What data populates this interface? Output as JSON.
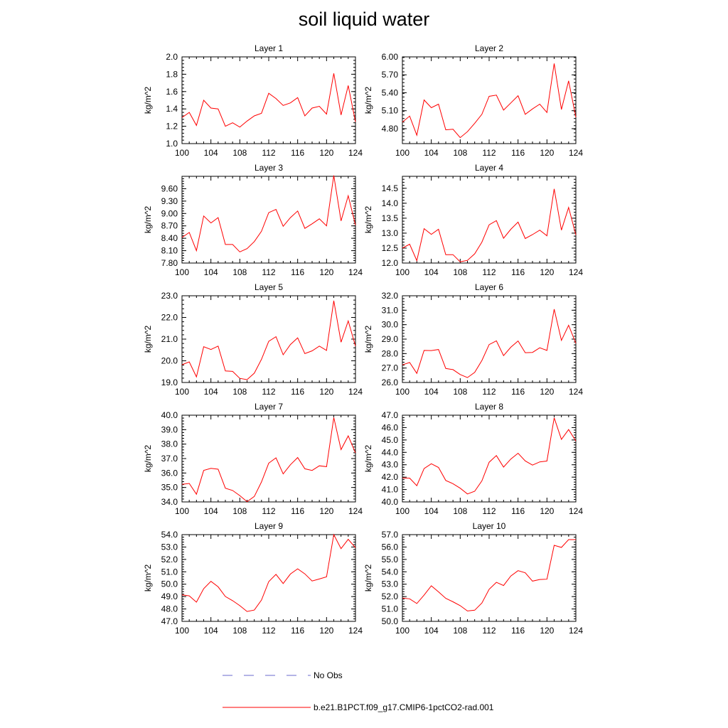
{
  "title": "soil liquid water",
  "colors": {
    "model_line": "#ff0000",
    "obs_line": "#6a6acd",
    "axis": "#000000"
  },
  "legend": [
    {
      "label": "No Obs",
      "style": "dashed",
      "color": "#6a6acd"
    },
    {
      "label": "b.e21.B1PCT.f09_g17.CMIP6-1pctCO2-rad.001",
      "style": "solid",
      "color": "#ff0000"
    }
  ],
  "chart_data": [
    {
      "type": "line",
      "title": "Layer 1",
      "ylabel": "kg/m^2",
      "xlim": [
        100,
        124
      ],
      "xticks": [
        100,
        104,
        108,
        112,
        116,
        120,
        124
      ],
      "ylim": [
        1.0,
        2.0
      ],
      "yticks": [
        "1.0",
        "1.2",
        "1.4",
        "1.6",
        "1.8",
        "2.0"
      ],
      "x": [
        100,
        101,
        102,
        103,
        104,
        105,
        106,
        107,
        108,
        109,
        110,
        111,
        112,
        113,
        114,
        115,
        116,
        117,
        118,
        119,
        120,
        121,
        122,
        123,
        124
      ],
      "series": [
        {
          "values": [
            1.3,
            1.36,
            1.21,
            1.5,
            1.41,
            1.4,
            1.2,
            1.24,
            1.19,
            1.26,
            1.32,
            1.35,
            1.58,
            1.52,
            1.44,
            1.47,
            1.53,
            1.32,
            1.41,
            1.43,
            1.34,
            1.81,
            1.33,
            1.67,
            1.25
          ]
        }
      ]
    },
    {
      "type": "line",
      "title": "Layer 2",
      "ylabel": "kg/m^2",
      "xlim": [
        100,
        124
      ],
      "xticks": [
        100,
        104,
        108,
        112,
        116,
        120,
        124
      ],
      "ylim": [
        4.55,
        6.0
      ],
      "yticks": [
        "4.80",
        "5.10",
        "5.40",
        "5.70",
        "6.00"
      ],
      "x": [
        100,
        101,
        102,
        103,
        104,
        105,
        106,
        107,
        108,
        109,
        110,
        111,
        112,
        113,
        114,
        115,
        116,
        117,
        118,
        119,
        120,
        121,
        122,
        123,
        124
      ],
      "series": [
        {
          "values": [
            4.91,
            5.01,
            4.69,
            5.28,
            5.15,
            5.21,
            4.78,
            4.79,
            4.65,
            4.75,
            4.89,
            5.04,
            5.34,
            5.36,
            5.11,
            5.23,
            5.35,
            5.04,
            5.13,
            5.21,
            5.07,
            5.89,
            5.12,
            5.6,
            4.99
          ]
        }
      ]
    },
    {
      "type": "line",
      "title": "Layer 3",
      "ylabel": "kg/m^2",
      "xlim": [
        100,
        124
      ],
      "xticks": [
        100,
        104,
        108,
        112,
        116,
        120,
        124
      ],
      "ylim": [
        7.8,
        9.9
      ],
      "yticks": [
        "7.80",
        "8.10",
        "8.40",
        "8.70",
        "9.00",
        "9.30",
        "9.60"
      ],
      "x": [
        100,
        101,
        102,
        103,
        104,
        105,
        106,
        107,
        108,
        109,
        110,
        111,
        112,
        113,
        114,
        115,
        116,
        117,
        118,
        119,
        120,
        121,
        122,
        123,
        124
      ],
      "series": [
        {
          "values": [
            8.42,
            8.54,
            8.1,
            8.94,
            8.77,
            8.9,
            8.25,
            8.25,
            8.07,
            8.15,
            8.32,
            8.57,
            9.02,
            9.1,
            8.69,
            8.9,
            9.06,
            8.64,
            8.75,
            8.87,
            8.7,
            9.92,
            8.82,
            9.43,
            8.72
          ]
        }
      ]
    },
    {
      "type": "line",
      "title": "Layer 4",
      "ylabel": "kg/m^2",
      "xlim": [
        100,
        124
      ],
      "xticks": [
        100,
        104,
        108,
        112,
        116,
        120,
        124
      ],
      "ylim": [
        12.0,
        14.9
      ],
      "yticks": [
        "12.0",
        "12.5",
        "13.0",
        "13.5",
        "14.0",
        "14.5"
      ],
      "x": [
        100,
        101,
        102,
        103,
        104,
        105,
        106,
        107,
        108,
        109,
        110,
        111,
        112,
        113,
        114,
        115,
        116,
        117,
        118,
        119,
        120,
        121,
        122,
        123,
        124
      ],
      "series": [
        {
          "values": [
            12.5,
            12.63,
            12.08,
            13.15,
            12.96,
            13.13,
            12.28,
            12.28,
            12.04,
            12.09,
            12.31,
            12.7,
            13.28,
            13.42,
            12.83,
            13.13,
            13.37,
            12.82,
            12.95,
            13.1,
            12.91,
            14.48,
            13.1,
            13.86,
            12.94
          ]
        }
      ]
    },
    {
      "type": "line",
      "title": "Layer 5",
      "ylabel": "kg/m^2",
      "xlim": [
        100,
        124
      ],
      "xticks": [
        100,
        104,
        108,
        112,
        116,
        120,
        124
      ],
      "ylim": [
        19.0,
        23.0
      ],
      "yticks": [
        "19.0",
        "20.0",
        "21.0",
        "22.0",
        "23.0"
      ],
      "x": [
        100,
        101,
        102,
        103,
        104,
        105,
        106,
        107,
        108,
        109,
        110,
        111,
        112,
        113,
        114,
        115,
        116,
        117,
        118,
        119,
        120,
        121,
        122,
        123,
        124
      ],
      "series": [
        {
          "values": [
            19.82,
            19.95,
            19.26,
            20.65,
            20.52,
            20.68,
            19.53,
            19.51,
            19.19,
            19.13,
            19.43,
            20.07,
            20.9,
            21.11,
            20.28,
            20.75,
            21.06,
            20.33,
            20.46,
            20.68,
            20.48,
            22.77,
            20.86,
            21.84,
            20.68
          ]
        }
      ]
    },
    {
      "type": "line",
      "title": "Layer 6",
      "ylabel": "kg/m^2",
      "xlim": [
        100,
        124
      ],
      "xticks": [
        100,
        104,
        108,
        112,
        116,
        120,
        124
      ],
      "ylim": [
        26.0,
        32.0
      ],
      "yticks": [
        "26.0",
        "27.0",
        "28.0",
        "29.0",
        "30.0",
        "31.0",
        "32.0"
      ],
      "x": [
        100,
        101,
        102,
        103,
        104,
        105,
        106,
        107,
        108,
        109,
        110,
        111,
        112,
        113,
        114,
        115,
        116,
        117,
        118,
        119,
        120,
        121,
        122,
        123,
        124
      ],
      "series": [
        {
          "values": [
            27.22,
            27.38,
            26.63,
            28.22,
            28.21,
            28.28,
            26.97,
            26.89,
            26.55,
            26.34,
            26.7,
            27.52,
            28.62,
            28.88,
            27.86,
            28.44,
            28.87,
            28.06,
            28.08,
            28.4,
            28.22,
            31.07,
            28.91,
            29.96,
            28.71
          ]
        }
      ]
    },
    {
      "type": "line",
      "title": "Layer 7",
      "ylabel": "kg/m^2",
      "xlim": [
        100,
        124
      ],
      "xticks": [
        100,
        104,
        108,
        112,
        116,
        120,
        124
      ],
      "ylim": [
        34.0,
        40.0
      ],
      "yticks": [
        "34.0",
        "35.0",
        "36.0",
        "37.0",
        "38.0",
        "39.0",
        "40.0"
      ],
      "x": [
        100,
        101,
        102,
        103,
        104,
        105,
        106,
        107,
        108,
        109,
        110,
        111,
        112,
        113,
        114,
        115,
        116,
        117,
        118,
        119,
        120,
        121,
        122,
        123,
        124
      ],
      "series": [
        {
          "values": [
            35.22,
            35.28,
            34.53,
            36.18,
            36.32,
            36.26,
            34.95,
            34.79,
            34.44,
            34.02,
            34.38,
            35.38,
            36.68,
            37.05,
            35.94,
            36.57,
            37.07,
            36.29,
            36.18,
            36.5,
            36.44,
            39.84,
            37.62,
            38.57,
            37.39
          ]
        }
      ]
    },
    {
      "type": "line",
      "title": "Layer 8",
      "ylabel": "kg/m^2",
      "xlim": [
        100,
        124
      ],
      "xticks": [
        100,
        104,
        108,
        112,
        116,
        120,
        124
      ],
      "ylim": [
        40.0,
        47.0
      ],
      "yticks": [
        "40.0",
        "41.0",
        "42.0",
        "43.0",
        "44.0",
        "45.0",
        "46.0",
        "47.0"
      ],
      "x": [
        100,
        101,
        102,
        103,
        104,
        105,
        106,
        107,
        108,
        109,
        110,
        111,
        112,
        113,
        114,
        115,
        116,
        117,
        118,
        119,
        120,
        121,
        122,
        123,
        124
      ],
      "series": [
        {
          "values": [
            41.93,
            41.92,
            41.31,
            42.69,
            43.08,
            42.78,
            41.73,
            41.47,
            41.11,
            40.64,
            40.86,
            41.7,
            43.2,
            43.74,
            42.81,
            43.46,
            43.93,
            43.31,
            42.97,
            43.23,
            43.3,
            46.79,
            45.05,
            45.84,
            44.91
          ]
        }
      ]
    },
    {
      "type": "line",
      "title": "Layer 9",
      "ylabel": "kg/m^2",
      "xlim": [
        100,
        124
      ],
      "xticks": [
        100,
        104,
        108,
        112,
        116,
        120,
        124
      ],
      "ylim": [
        47.0,
        54.0
      ],
      "yticks": [
        "47.0",
        "48.0",
        "49.0",
        "50.0",
        "51.0",
        "52.0",
        "53.0",
        "54.0"
      ],
      "x": [
        100,
        101,
        102,
        103,
        104,
        105,
        106,
        107,
        108,
        109,
        110,
        111,
        112,
        113,
        114,
        115,
        116,
        117,
        118,
        119,
        120,
        121,
        122,
        123,
        124
      ],
      "series": [
        {
          "values": [
            49.14,
            49.06,
            48.55,
            49.64,
            50.23,
            49.79,
            49.01,
            48.67,
            48.27,
            47.8,
            47.91,
            48.72,
            50.21,
            50.79,
            50.05,
            50.82,
            51.24,
            50.83,
            50.26,
            50.42,
            50.59,
            54.0,
            52.87,
            53.62,
            52.94
          ]
        }
      ]
    },
    {
      "type": "line",
      "title": "Layer 10",
      "ylabel": "kg/m^2",
      "xlim": [
        100,
        124
      ],
      "xticks": [
        100,
        104,
        108,
        112,
        116,
        120,
        124
      ],
      "ylim": [
        50.0,
        57.0
      ],
      "yticks": [
        "50.0",
        "51.0",
        "52.0",
        "53.0",
        "54.0",
        "55.0",
        "56.0",
        "57.0"
      ],
      "x": [
        100,
        101,
        102,
        103,
        104,
        105,
        106,
        107,
        108,
        109,
        110,
        111,
        112,
        113,
        114,
        115,
        116,
        117,
        118,
        119,
        120,
        121,
        122,
        123,
        124
      ],
      "series": [
        {
          "values": [
            51.88,
            51.82,
            51.44,
            52.12,
            52.87,
            52.38,
            51.86,
            51.58,
            51.27,
            50.84,
            50.9,
            51.48,
            52.59,
            53.15,
            52.89,
            53.66,
            54.09,
            53.92,
            53.25,
            53.38,
            53.4,
            56.14,
            55.97,
            56.6,
            56.6
          ]
        }
      ]
    }
  ]
}
